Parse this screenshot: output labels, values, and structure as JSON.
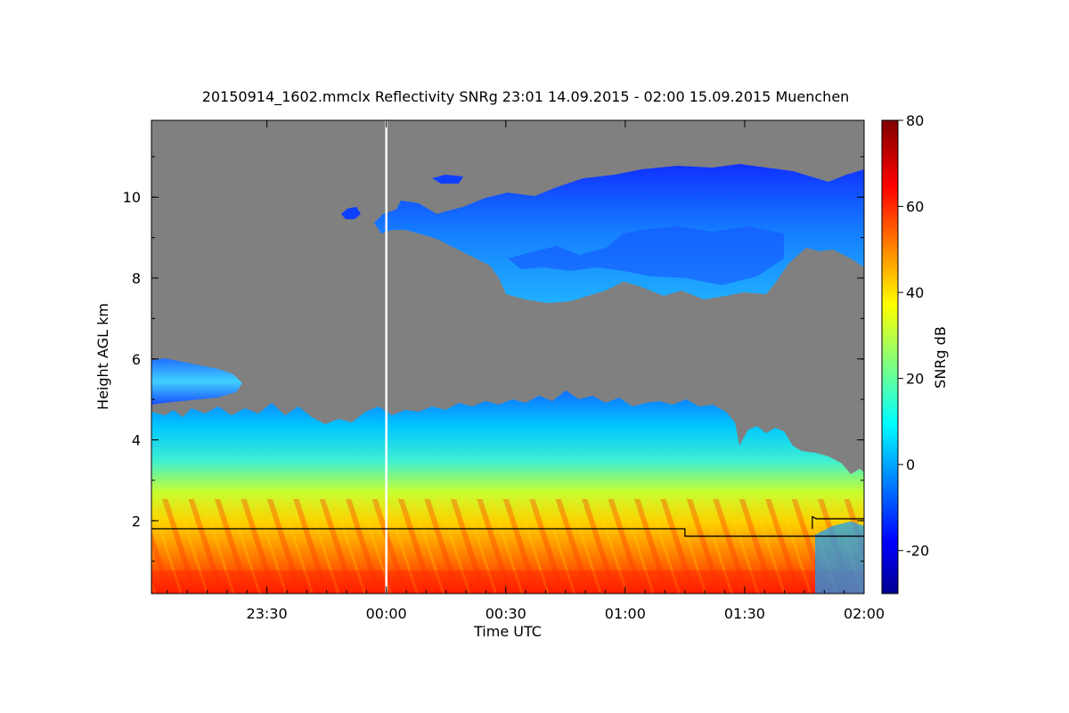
{
  "chart_data": {
    "type": "heatmap",
    "title": "20150914_1602.mmclx Reflectivity SNRg   23:01 14.09.2015 - 02:00 15.09.2015 Muenchen",
    "xlabel": "Time UTC",
    "ylabel": "Height AGL km",
    "colorbar_label": "SNRg dB",
    "x_range_minutes_from_2300": [
      1,
      180
    ],
    "y_range_km": [
      0.2,
      11.9
    ],
    "x_ticks": [
      {
        "label": "23:30",
        "minutes": 30
      },
      {
        "label": "00:00",
        "minutes": 60
      },
      {
        "label": "00:30",
        "minutes": 90
      },
      {
        "label": "01:00",
        "minutes": 120
      },
      {
        "label": "01:30",
        "minutes": 150
      },
      {
        "label": "02:00",
        "minutes": 180
      }
    ],
    "y_ticks": [
      {
        "label": "2",
        "value": 2
      },
      {
        "label": "4",
        "value": 4
      },
      {
        "label": "6",
        "value": 6
      },
      {
        "label": "8",
        "value": 8
      },
      {
        "label": "10",
        "value": 10
      }
    ],
    "colorbar_range_db": [
      -30,
      80
    ],
    "colorbar_ticks": [
      {
        "label": "80",
        "value": 80
      },
      {
        "label": "60",
        "value": 60
      },
      {
        "label": "40",
        "value": 40
      },
      {
        "label": "20",
        "value": 20
      },
      {
        "label": "0",
        "value": 0
      },
      {
        "label": "-20",
        "value": -20
      }
    ],
    "no_signal_color": "#808080",
    "colormap": [
      "#00008f",
      "#0000ff",
      "#00ffff",
      "#ffff00",
      "#ff0000",
      "#800000"
    ],
    "midnight_line_minutes": 60,
    "cloud_base_height_line": {
      "minutes": [
        1,
        135,
        135,
        180
      ],
      "height_km": [
        1.8,
        1.8,
        1.62,
        1.62
      ]
    },
    "secondary_line": {
      "minutes": [
        167,
        167,
        168,
        180
      ],
      "height_km": [
        1.8,
        2.1,
        2.05,
        2.05
      ]
    }
  }
}
